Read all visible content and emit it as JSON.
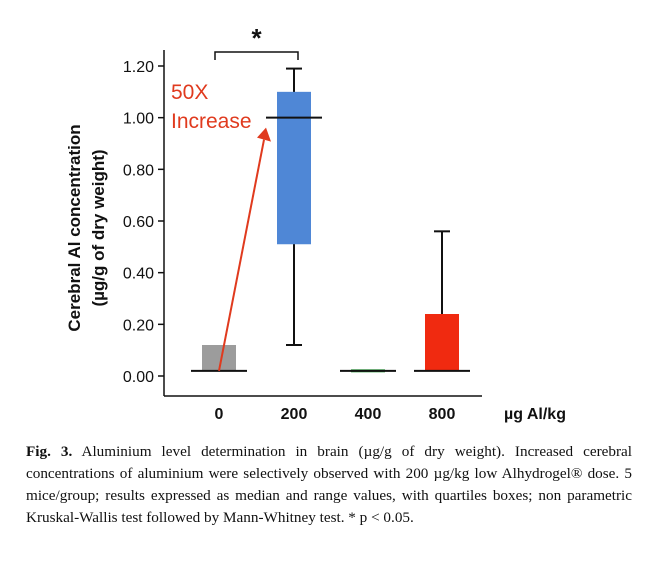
{
  "chart_data": {
    "type": "box",
    "ylabel_line1": "Cerebral Al concentration",
    "ylabel_line2": "(µg/g of dry weight)",
    "xlabel": "µg Al/kg",
    "ylim": [
      0,
      1.2
    ],
    "yticks": [
      "0.00",
      "0.20",
      "0.40",
      "0.60",
      "0.80",
      "1.00",
      "1.20"
    ],
    "categories": [
      "0",
      "200",
      "400",
      "800"
    ],
    "boxes": [
      {
        "category": "0",
        "min": 0.02,
        "q1": 0.02,
        "median": 0.02,
        "q3": 0.12,
        "max": 0.12,
        "color": "#9c9c9c"
      },
      {
        "category": "200",
        "min": 0.12,
        "q1": 0.51,
        "median": 1.0,
        "q3": 1.1,
        "max": 1.19,
        "color": "#4f87d6"
      },
      {
        "category": "400",
        "min": 0.02,
        "q1": 0.02,
        "median": 0.02,
        "q3": 0.02,
        "max": 0.02,
        "color": "#2a9e3c"
      },
      {
        "category": "800",
        "min": 0.02,
        "q1": 0.02,
        "median": 0.02,
        "q3": 0.24,
        "max": 0.56,
        "color": "#f02a10"
      }
    ],
    "significance": {
      "between": [
        "0",
        "200"
      ],
      "label": "*"
    },
    "annotation": {
      "line1": "50X",
      "line2": "Increase",
      "color": "#e03a1e"
    }
  },
  "caption": {
    "label": "Fig. 3.",
    "text": " Aluminium level determination in brain (µg/g of dry weight). Increased cerebral concentrations of aluminium were selectively observed with 200 µg/kg low Alhydrogel® dose. 5 mice/group; results expressed as median and range values, with quartiles boxes; non parametric Kruskal-Wallis test followed by Mann-Whitney test. * p < 0.05."
  }
}
